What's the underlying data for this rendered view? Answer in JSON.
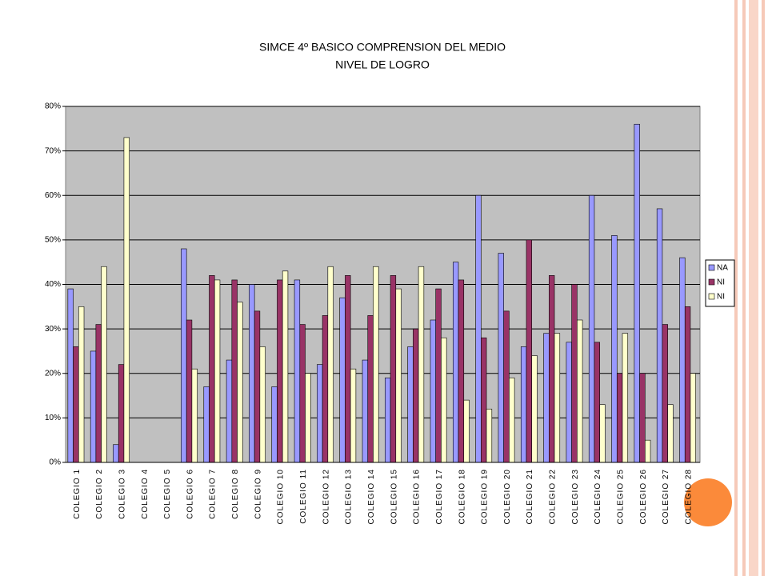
{
  "chart_data": {
    "type": "bar",
    "title": "SIMCE  4º BASICO COMPRENSION DEL MEDIO",
    "subtitle": "NIVEL DE LOGRO",
    "categories": [
      "COLEGIO 1",
      "COLEGIO 2",
      "COLEGIO 3",
      "COLEGIO 4",
      "COLEGIO 5",
      "COLEGIO 6",
      "COLEGIO 7",
      "COLEGIO 8",
      "COLEGIO 9",
      "COLEGIO 10",
      "COLEGIO 11",
      "COLEGIO 12",
      "COLEGIO 13",
      "COLEGIO 14",
      "COLEGIO 15",
      "COLEGIO 16",
      "COLEGIO 17",
      "COLEGIO 18",
      "COLEGIO 19",
      "COLEGIO 20",
      "COLEGIO 21",
      "COLEGIO 22",
      "COLEGIO 23",
      "COLEGIO 24",
      "COLEGIO 25",
      "COLEGIO 26",
      "COLEGIO 27",
      "COLEGIO 28"
    ],
    "series": [
      {
        "name": "NA",
        "color": "#9999ff",
        "values": [
          39,
          25,
          4,
          null,
          null,
          48,
          17,
          23,
          40,
          17,
          41,
          22,
          37,
          23,
          19,
          26,
          32,
          45,
          60,
          47,
          26,
          29,
          27,
          60,
          51,
          76,
          57,
          46
        ]
      },
      {
        "name": "NI",
        "color": "#993366",
        "values": [
          26,
          31,
          22,
          null,
          null,
          32,
          42,
          41,
          34,
          41,
          31,
          33,
          42,
          33,
          42,
          30,
          39,
          41,
          28,
          34,
          50,
          42,
          40,
          27,
          20,
          20,
          31,
          35
        ]
      },
      {
        "name": "NI",
        "color": "#ffffcc",
        "values": [
          35,
          44,
          73,
          null,
          null,
          21,
          41,
          36,
          26,
          43,
          20,
          44,
          21,
          44,
          39,
          44,
          28,
          14,
          12,
          19,
          24,
          29,
          32,
          13,
          29,
          5,
          13,
          20
        ]
      }
    ],
    "ylim": [
      0,
      80
    ],
    "yticks": [
      {
        "value": 0,
        "label": "0%"
      },
      {
        "value": 10,
        "label": "10%"
      },
      {
        "value": 20,
        "label": "20%"
      },
      {
        "value": 30,
        "label": "30%"
      },
      {
        "value": 40,
        "label": "40%"
      },
      {
        "value": 50,
        "label": "50%"
      },
      {
        "value": 60,
        "label": "60%"
      },
      {
        "value": 70,
        "label": "70%"
      },
      {
        "value": 80,
        "label": "80%"
      }
    ],
    "grid": true,
    "legend": "right"
  }
}
